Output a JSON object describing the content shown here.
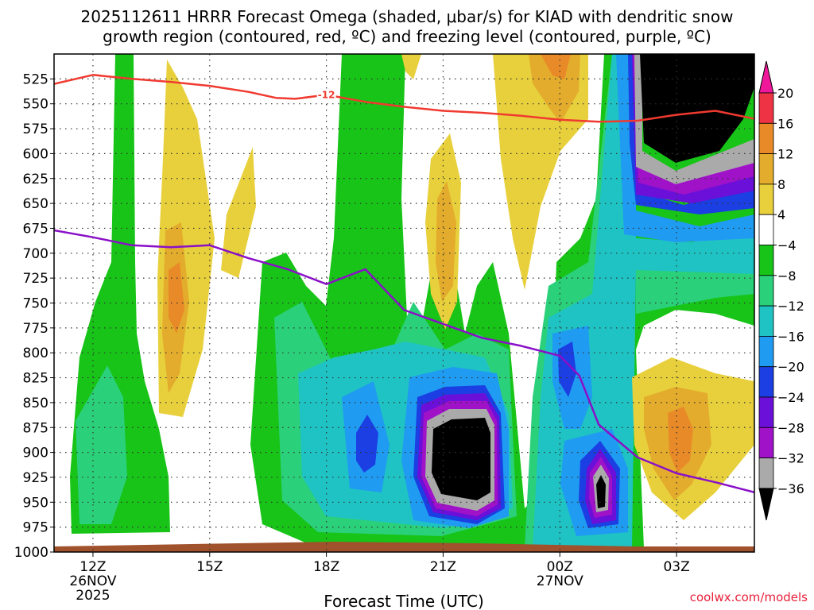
{
  "chart_data": {
    "type": "heatmap",
    "title_line1": "2025112611 HRRR Forecast Omega (shaded, μbar/s) for KIAD with dendritic snow",
    "title_line2": "growth region (contoured, red, ºC) and freezing level (contoured, purple, ºC)",
    "xlabel": "Forecast Time (UTC)",
    "ylabel": "",
    "credit": "coolwx.com/models",
    "x_ticks": [
      {
        "hour": 12,
        "label": "12Z",
        "sub1": "26NOV",
        "sub2": "2025"
      },
      {
        "hour": 15,
        "label": "15Z",
        "sub1": "",
        "sub2": ""
      },
      {
        "hour": 18,
        "label": "18Z",
        "sub1": "",
        "sub2": ""
      },
      {
        "hour": 21,
        "label": "21Z",
        "sub1": "",
        "sub2": ""
      },
      {
        "hour": 24,
        "label": "00Z",
        "sub1": "27NOV",
        "sub2": ""
      },
      {
        "hour": 27,
        "label": "03Z",
        "sub1": "",
        "sub2": ""
      }
    ],
    "xlim": [
      11,
      29
    ],
    "y_ticks": [
      525,
      550,
      575,
      600,
      625,
      650,
      675,
      700,
      725,
      750,
      775,
      800,
      825,
      850,
      875,
      900,
      925,
      950,
      975,
      1000
    ],
    "ylim": [
      500,
      1000
    ],
    "colorbar": {
      "labels": [
        "20",
        "16",
        "12",
        "8",
        "4",
        "−4",
        "−8",
        "−12",
        "−16",
        "−20",
        "−24",
        "−28",
        "−32",
        "−36"
      ],
      "bins": [
        {
          "lo": 16,
          "hi": 20,
          "color": "#ee3344"
        },
        {
          "lo": 12,
          "hi": 16,
          "color": "#e98a28"
        },
        {
          "lo": 8,
          "hi": 12,
          "color": "#e3ac2c"
        },
        {
          "lo": 4,
          "hi": 8,
          "color": "#e8d03c"
        },
        {
          "lo": -4,
          "hi": 4,
          "color": "#ffffff"
        },
        {
          "lo": -8,
          "hi": -4,
          "color": "#17c417"
        },
        {
          "lo": -12,
          "hi": -8,
          "color": "#2bd07a"
        },
        {
          "lo": -16,
          "hi": -12,
          "color": "#1fc3c3"
        },
        {
          "lo": -20,
          "hi": -16,
          "color": "#1f9bf2"
        },
        {
          "lo": -24,
          "hi": -20,
          "color": "#1b3fe2"
        },
        {
          "lo": -28,
          "hi": -24,
          "color": "#6a10d8"
        },
        {
          "lo": -32,
          "hi": -28,
          "color": "#a012c8"
        },
        {
          "lo": -36,
          "hi": -32,
          "color": "#aaaaaa"
        }
      ],
      "top_cap": "#f0189a",
      "bottom_cap": "#000000"
    },
    "dgz_line": {
      "label": "-12",
      "color": "#f03a30",
      "points": [
        [
          11,
          530
        ],
        [
          12,
          521
        ],
        [
          13,
          525
        ],
        [
          14,
          528
        ],
        [
          15,
          532
        ],
        [
          16,
          538
        ],
        [
          16.7,
          544
        ],
        [
          17.2,
          545
        ],
        [
          18,
          541
        ],
        [
          19,
          548
        ],
        [
          20,
          553
        ],
        [
          21,
          557
        ],
        [
          22,
          559
        ],
        [
          23,
          562
        ],
        [
          24,
          566
        ],
        [
          25,
          568
        ],
        [
          26,
          567
        ],
        [
          27,
          561
        ],
        [
          28,
          557
        ],
        [
          29,
          565
        ]
      ]
    },
    "freezing_line": {
      "color": "#8a10c8",
      "points": [
        [
          11,
          677
        ],
        [
          12,
          684
        ],
        [
          13,
          692
        ],
        [
          14,
          694
        ],
        [
          15,
          692
        ],
        [
          16,
          705
        ],
        [
          17,
          716
        ],
        [
          18,
          731
        ],
        [
          19,
          716
        ],
        [
          20,
          757
        ],
        [
          21,
          771
        ],
        [
          22,
          785
        ],
        [
          23,
          793
        ],
        [
          24,
          803
        ],
        [
          24.5,
          823
        ],
        [
          25,
          872
        ],
        [
          26,
          905
        ],
        [
          27,
          921
        ],
        [
          28,
          930
        ],
        [
          29,
          940
        ]
      ]
    },
    "omega_features": [
      {
        "name": "low-level green band 12Z",
        "value": -6,
        "hours": [
          11,
          13.9
        ],
        "pres": [
          530,
          990
        ]
      },
      {
        "name": "midday updraft green",
        "value": -6,
        "hours": [
          17,
          22.6
        ],
        "pres": [
          675,
          1000
        ]
      },
      {
        "name": "deep column green 18-20Z",
        "value": -6,
        "hours": [
          18.3,
          20
        ],
        "pres": [
          500,
          780
        ]
      },
      {
        "name": "afternoon core",
        "value": -40,
        "hours": [
          20.9,
          22.3
        ],
        "pres": [
          835,
          960
        ]
      },
      {
        "name": "00Z core",
        "value": -36,
        "hours": [
          24.5,
          25.1
        ],
        "pres": [
          890,
          960
        ]
      },
      {
        "name": "upper-level core",
        "value": -40,
        "hours": [
          26.9,
          29
        ],
        "pres": [
          500,
          590
        ]
      },
      {
        "name": "positive omega 15Z",
        "value": 10,
        "hours": [
          13.8,
          15.4
        ],
        "pres": [
          560,
          805
        ]
      },
      {
        "name": "positive omega 03Z",
        "value": 10,
        "hours": [
          26.3,
          28.3
        ],
        "pres": [
          770,
          960
        ]
      }
    ]
  }
}
